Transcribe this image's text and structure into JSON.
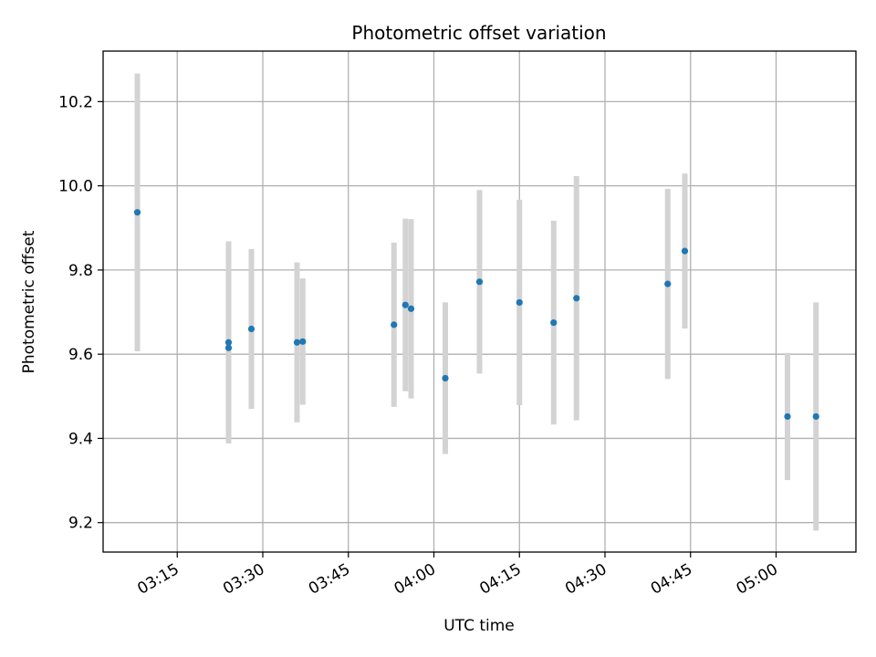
{
  "chart_data": {
    "type": "scatter",
    "title": "Photometric offset variation",
    "xlabel": "UTC time",
    "ylabel": "Photometric offset",
    "x_axis_type": "time",
    "xlim": [
      "03:02",
      "05:14"
    ],
    "ylim": [
      9.13,
      10.32
    ],
    "xticks": [
      "03:15",
      "03:30",
      "03:45",
      "04:00",
      "04:15",
      "04:30",
      "04:45",
      "05:00"
    ],
    "yticks": [
      9.2,
      9.4,
      9.6,
      9.8,
      10.0,
      10.2
    ],
    "ytick_labels": [
      "9.2",
      "9.4",
      "9.6",
      "9.8",
      "10.0",
      "10.2"
    ],
    "grid": true,
    "point_color": "#1f77b4",
    "errorbar_color": "#d3d3d3",
    "points": [
      {
        "time": "03:08",
        "y": 9.937,
        "yerr": 0.33
      },
      {
        "time": "03:24",
        "y": 9.615,
        "yerr": 0.18
      },
      {
        "time": "03:24",
        "y": 9.628,
        "yerr": 0.24
      },
      {
        "time": "03:28",
        "y": 9.66,
        "yerr": 0.19
      },
      {
        "time": "03:36",
        "y": 9.628,
        "yerr": 0.19
      },
      {
        "time": "03:37",
        "y": 9.63,
        "yerr": 0.15
      },
      {
        "time": "03:53",
        "y": 9.67,
        "yerr": 0.195
      },
      {
        "time": "03:55",
        "y": 9.717,
        "yerr": 0.205
      },
      {
        "time": "03:56",
        "y": 9.708,
        "yerr": 0.213
      },
      {
        "time": "04:02",
        "y": 9.543,
        "yerr": 0.18
      },
      {
        "time": "04:08",
        "y": 9.772,
        "yerr": 0.218
      },
      {
        "time": "04:15",
        "y": 9.723,
        "yerr": 0.244
      },
      {
        "time": "04:21",
        "y": 9.675,
        "yerr": 0.242
      },
      {
        "time": "04:25",
        "y": 9.733,
        "yerr": 0.29
      },
      {
        "time": "04:41",
        "y": 9.767,
        "yerr": 0.226
      },
      {
        "time": "04:44",
        "y": 9.845,
        "yerr": 0.184
      },
      {
        "time": "05:02",
        "y": 9.452,
        "yerr": 0.151
      },
      {
        "time": "05:07",
        "y": 9.452,
        "yerr": 0.271
      }
    ]
  }
}
